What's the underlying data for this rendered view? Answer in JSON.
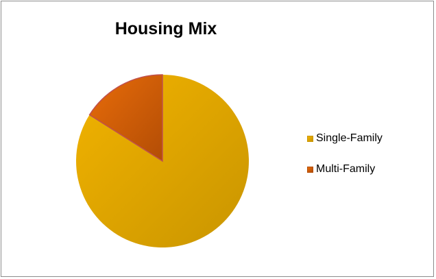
{
  "chart_data": {
    "type": "pie",
    "title": "Housing Mix",
    "slices": [
      {
        "label": "Single-Family",
        "value": 84,
        "color": "#f2b300",
        "shade": "#c99500"
      },
      {
        "label": "Multi-Family",
        "value": 16,
        "color": "#e86c0a",
        "shade": "#b34d05"
      }
    ],
    "legend": "right"
  }
}
